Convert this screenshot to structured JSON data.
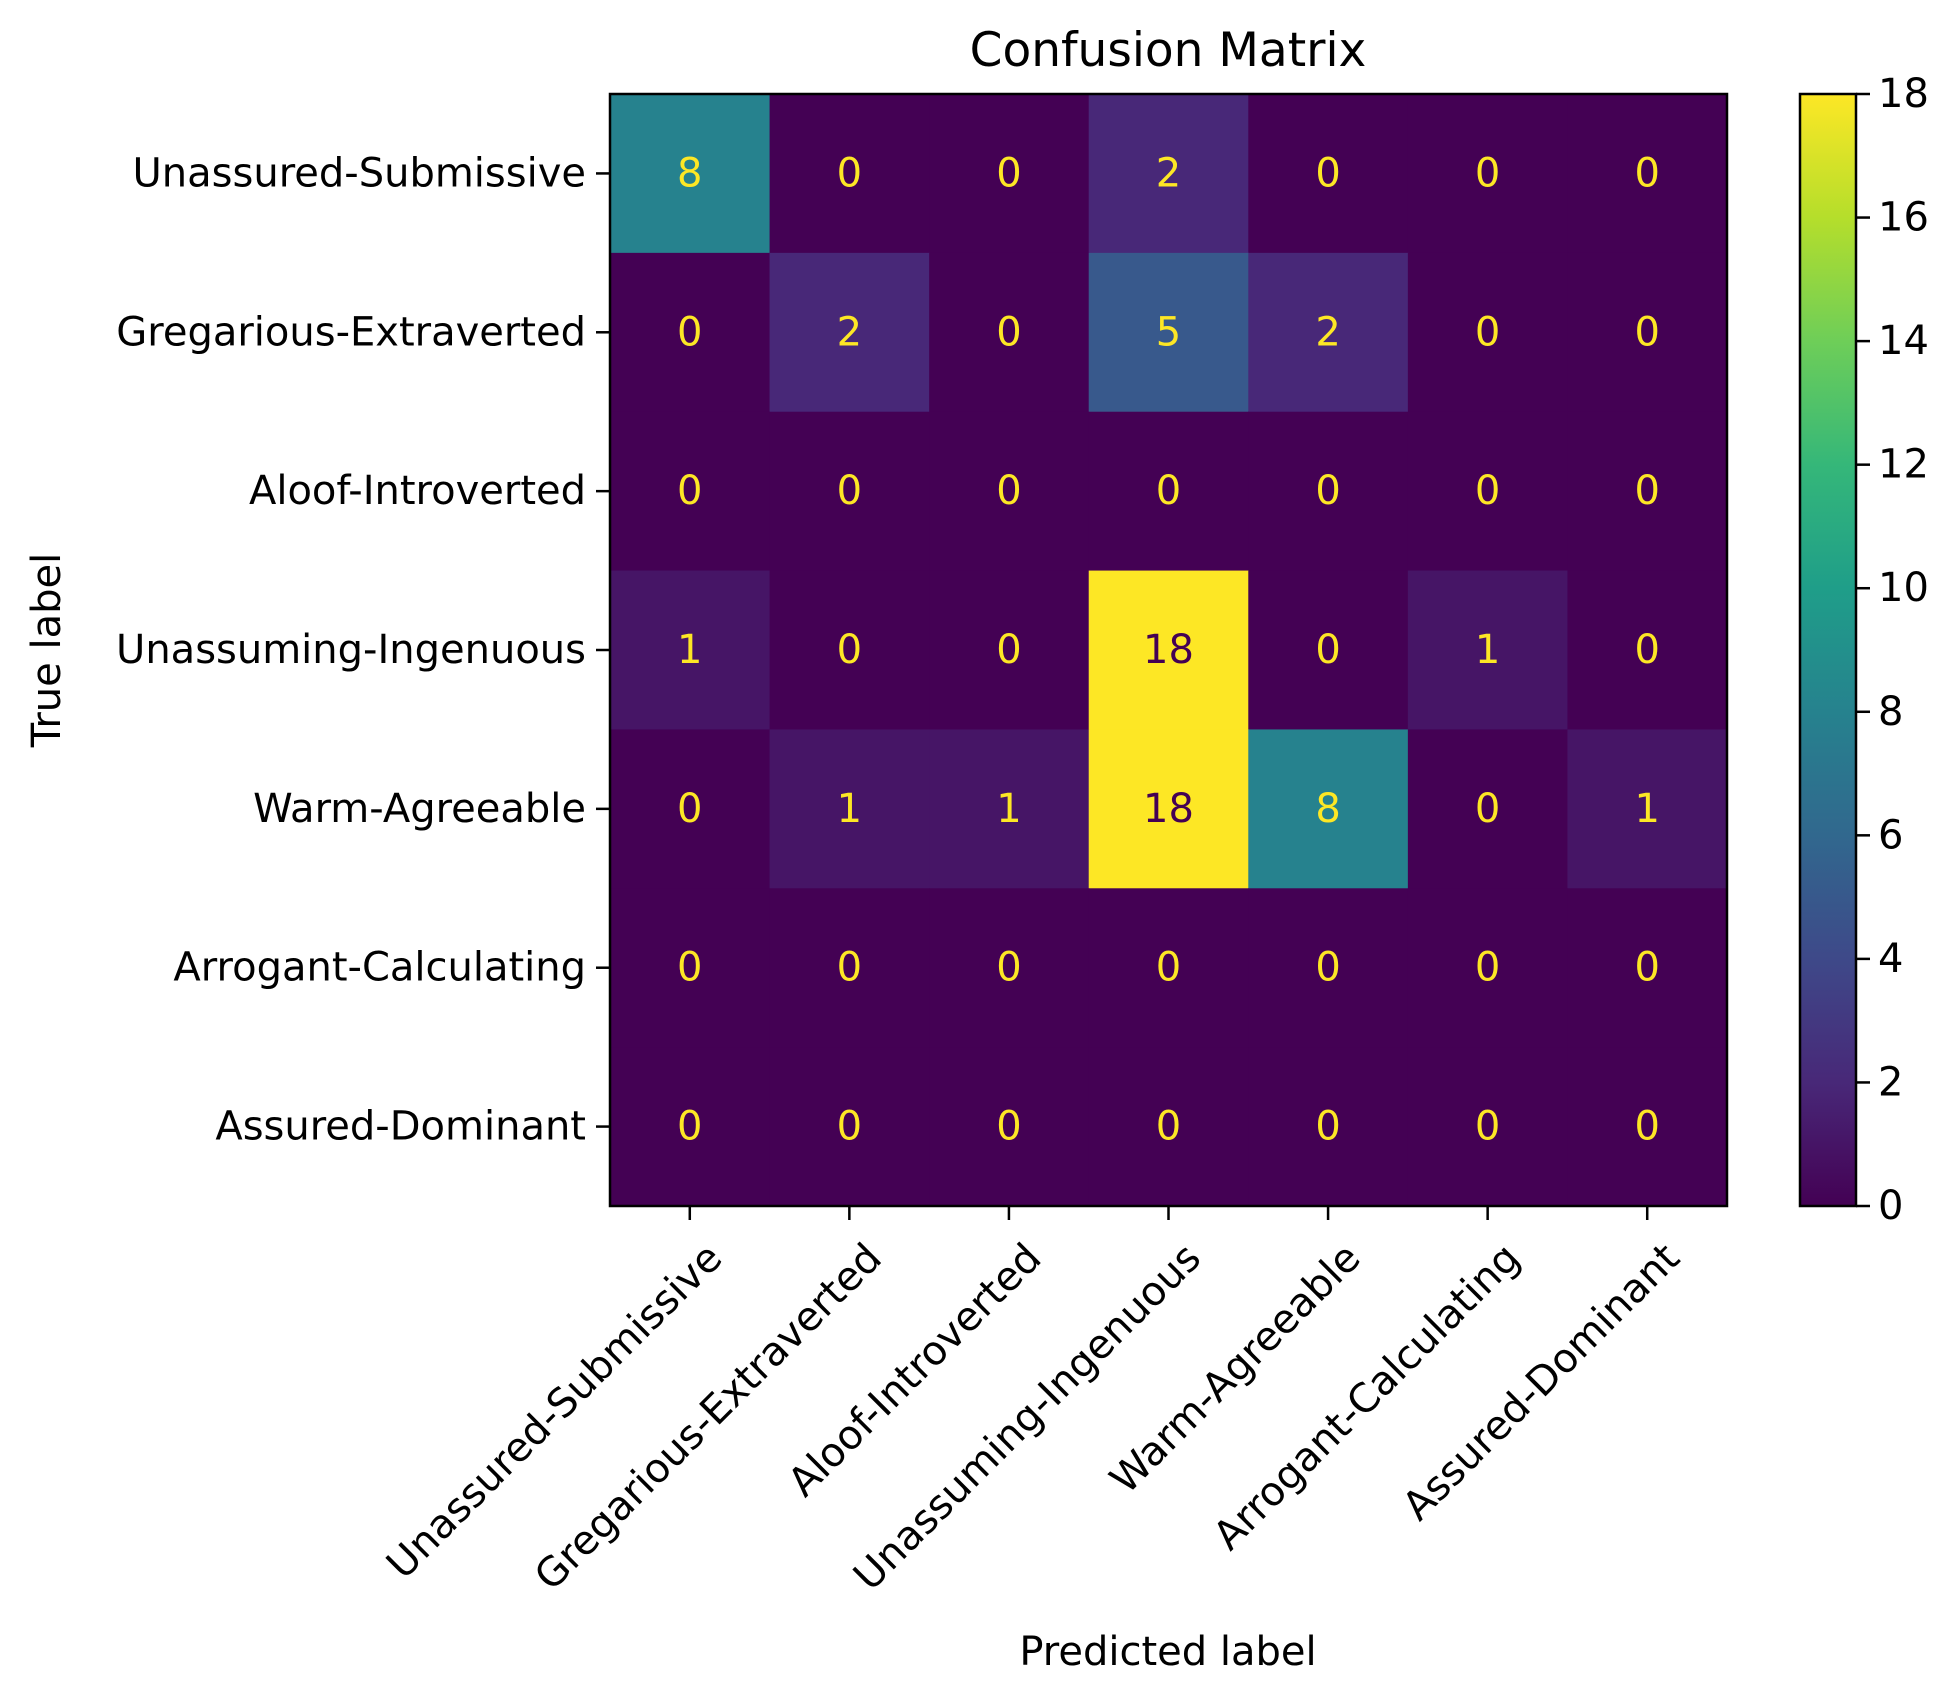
{
  "chart_data": {
    "type": "heatmap",
    "title": "Confusion Matrix",
    "xlabel": "Predicted label",
    "ylabel": "True label",
    "labels": [
      "Unassured-Submissive",
      "Gregarious-Extraverted",
      "Aloof-Introverted",
      "Unassuming-Ingenuous",
      "Warm-Agreeable",
      "Arrogant-Calculating",
      "Assured-Dominant"
    ],
    "matrix": [
      [
        8,
        0,
        0,
        2,
        0,
        0,
        0
      ],
      [
        0,
        2,
        0,
        5,
        2,
        0,
        0
      ],
      [
        0,
        0,
        0,
        0,
        0,
        0,
        0
      ],
      [
        1,
        0,
        0,
        18,
        0,
        1,
        0
      ],
      [
        0,
        1,
        1,
        18,
        8,
        0,
        1
      ],
      [
        0,
        0,
        0,
        0,
        0,
        0,
        0
      ],
      [
        0,
        0,
        0,
        0,
        0,
        0,
        0
      ]
    ],
    "colormap": "viridis",
    "vmin": 0,
    "vmax": 18,
    "colorbar_ticks": [
      0,
      2,
      4,
      6,
      8,
      10,
      12,
      14,
      16,
      18
    ],
    "text_colors": {
      "low": "#fde725",
      "high": "#440154"
    },
    "grid": false
  }
}
